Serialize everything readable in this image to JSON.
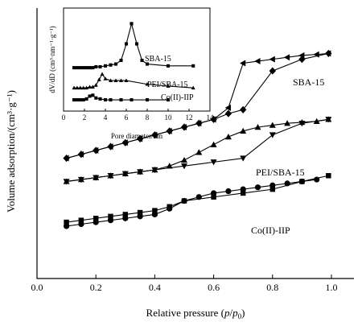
{
  "chart_data": [
    {
      "type": "line",
      "xlabel": "Relative pressure (p/p0)",
      "xlabel_parts": {
        "prefix": "Relative pressure (",
        "p": "p",
        "slash": "/",
        "p0": "p",
        "sub0": "0",
        "suffix": ")"
      },
      "ylabel": "Volume adsorption/(cm³·g⁻¹)",
      "xlim": [
        0.0,
        1.0
      ],
      "ylim": [
        0,
        100
      ],
      "x_ticks": [
        "0.0",
        "0.2",
        "0.4",
        "0.6",
        "0.8",
        "1.0"
      ],
      "y_ticks_shown": false,
      "grid": false,
      "series": [
        {
          "name": "SBA-15",
          "branch": "adsorption",
          "marker": "diamond",
          "x": [
            0.1,
            0.15,
            0.2,
            0.25,
            0.3,
            0.35,
            0.4,
            0.45,
            0.5,
            0.55,
            0.6,
            0.65,
            0.7,
            0.8,
            0.9,
            0.99
          ],
          "y": [
            45,
            47,
            49,
            51,
            53,
            55,
            57,
            59,
            61,
            63,
            65,
            68,
            70,
            90,
            96,
            99
          ]
        },
        {
          "name": "SBA-15",
          "branch": "desorption",
          "marker": "triangle-left",
          "x": [
            0.1,
            0.15,
            0.2,
            0.25,
            0.3,
            0.35,
            0.4,
            0.45,
            0.5,
            0.55,
            0.6,
            0.65,
            0.7,
            0.75,
            0.8,
            0.85,
            0.9,
            0.95,
            0.99
          ],
          "y": [
            45,
            47,
            49,
            51,
            53,
            55,
            57,
            59,
            61,
            63,
            65,
            71,
            94,
            95,
            96,
            97,
            98,
            98.5,
            99
          ]
        },
        {
          "name": "PEI/SBA-15",
          "branch": "adsorption",
          "marker": "triangle-down",
          "x": [
            0.1,
            0.15,
            0.2,
            0.25,
            0.3,
            0.35,
            0.4,
            0.5,
            0.6,
            0.7,
            0.8,
            0.9,
            0.99
          ],
          "y": [
            33,
            34,
            35,
            36,
            37,
            38,
            39,
            41,
            43,
            45,
            57,
            63,
            65
          ]
        },
        {
          "name": "PEI/SBA-15",
          "branch": "desorption",
          "marker": "triangle-up",
          "x": [
            0.1,
            0.15,
            0.2,
            0.25,
            0.3,
            0.35,
            0.4,
            0.45,
            0.5,
            0.55,
            0.6,
            0.65,
            0.7,
            0.75,
            0.8,
            0.85,
            0.9,
            0.95,
            0.99
          ],
          "y": [
            33,
            34,
            35,
            36,
            37,
            38,
            39,
            41,
            44,
            48,
            52,
            56,
            59,
            61,
            62,
            63,
            63.5,
            64,
            65
          ]
        },
        {
          "name": "Co(II)-IIP",
          "branch": "adsorption",
          "marker": "square",
          "x": [
            0.1,
            0.15,
            0.2,
            0.25,
            0.3,
            0.35,
            0.4,
            0.45,
            0.5,
            0.6,
            0.7,
            0.8,
            0.9,
            0.99
          ],
          "y": [
            12,
            13,
            14,
            15,
            16,
            17,
            18,
            20,
            23,
            25,
            27,
            29,
            33,
            36
          ]
        },
        {
          "name": "Co(II)-IIP",
          "branch": "desorption",
          "marker": "circle",
          "x": [
            0.1,
            0.15,
            0.2,
            0.25,
            0.3,
            0.35,
            0.4,
            0.45,
            0.5,
            0.55,
            0.6,
            0.65,
            0.7,
            0.75,
            0.8,
            0.85,
            0.9,
            0.95
          ],
          "y": [
            10,
            11,
            12,
            13,
            14,
            15,
            16,
            19,
            23,
            25,
            27,
            28,
            29,
            30,
            31,
            32,
            33,
            34
          ]
        }
      ]
    },
    {
      "type": "line",
      "subplot": "inset",
      "xlabel": "Pore diameter/nm",
      "ylabel": "dV/dD (cm³·nm⁻¹·g⁻¹)",
      "xlim": [
        0,
        14
      ],
      "ylim": [
        0,
        100
      ],
      "x_ticks": [
        "0",
        "2",
        "4",
        "6",
        "8",
        "10",
        "12",
        "14"
      ],
      "y_ticks_shown": false,
      "grid": false,
      "series": [
        {
          "name": "SBA-15",
          "marker": "square",
          "x": [
            1,
            1.3,
            1.6,
            1.9,
            2.2,
            2.5,
            2.8,
            3.1,
            3.5,
            4.0,
            4.5,
            5.0,
            5.5,
            6.0,
            6.5,
            7.0,
            7.5,
            8.0,
            10.0,
            12.4
          ],
          "y": [
            42,
            42,
            42,
            42,
            42,
            42,
            42,
            43,
            43,
            44,
            45,
            46,
            50,
            68,
            90,
            68,
            50,
            46,
            44,
            44
          ]
        },
        {
          "name": "PEI/SBA-15",
          "marker": "triangle-up",
          "x": [
            1,
            1.3,
            1.6,
            1.9,
            2.2,
            2.5,
            2.8,
            3.1,
            3.4,
            3.7,
            4.0,
            4.5,
            5.0,
            5.5,
            6.0,
            8.0,
            10.0,
            12.4
          ],
          "y": [
            20,
            20,
            20,
            20,
            20,
            21,
            21,
            23,
            29,
            35,
            30,
            28,
            28,
            28,
            28,
            24,
            22,
            20
          ]
        },
        {
          "name": "Co(II)-IIP",
          "marker": "square",
          "x": [
            1,
            1.3,
            1.6,
            1.9,
            2.2,
            2.5,
            2.8,
            3.1,
            3.5,
            4.0,
            4.5,
            5.5,
            6.5,
            8.0,
            10.0
          ],
          "y": [
            7,
            7,
            7,
            7,
            8,
            11,
            12,
            9,
            8,
            7,
            7,
            7,
            7,
            7,
            7
          ]
        }
      ]
    }
  ],
  "labels": {
    "main_sba": "SBA-15",
    "main_pei": "PEI/SBA-15",
    "main_co": "Co(II)-IIP",
    "inset_sba": "SBA-15",
    "inset_pei": "PEI/SBA-15",
    "inset_co": "Co(II)-IIP",
    "inset_xlabel": "Pore diameter/nm",
    "main_ylabel": "Volume adsorption/(cm³·g⁻¹)",
    "inset_ylabel": "dV/dD (cm³·nm⁻¹·g⁻¹)"
  }
}
